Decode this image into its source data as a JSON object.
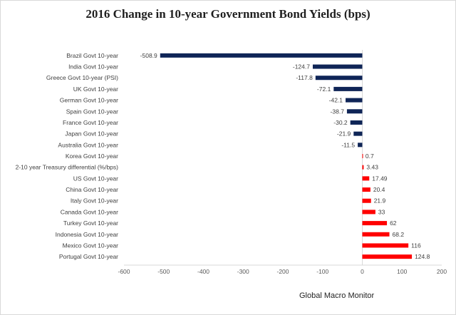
{
  "chart_data": {
    "type": "bar",
    "orientation": "horizontal",
    "title": "2016 Change in 10-year Government Bond Yields (bps)",
    "source": "Global Macro Monitor",
    "categories": [
      "Brazil Govt 10-year",
      "India Govt 10-year",
      "Greece Govt 10-year (PSI)",
      "UK Govt 10-year",
      "German Govt 10-year",
      "Spain Govt 10-year",
      "France Govt 10-year",
      "Japan Govt 10-year",
      "Australia Govt 10-year",
      "Korea Govt 10-year",
      "2-10 year Treasury differential (%/bps)",
      "US Govt 10-year",
      "China Govt 10-year",
      "Italy Govt 10-year",
      "Canada Govt 10-year",
      "Turkey Govt 10-year",
      "Indonesia Govt 10-year",
      "Mexico Govt 10-year",
      "Portugal Govt 10-year"
    ],
    "values": [
      -508.9,
      -124.7,
      -117.8,
      -72.1,
      -42.1,
      -38.7,
      -30.2,
      -21.9,
      -11.5,
      0.7,
      3.43,
      17.49,
      20.4,
      21.9,
      33,
      62,
      68.2,
      116,
      124.8
    ],
    "value_labels": [
      "-508.9",
      "-124.7",
      "-117.8",
      "-72.1",
      "-42.1",
      "-38.7",
      "-30.2",
      "-21.9",
      "-11.5",
      "0.7",
      "3.43",
      "17.49",
      "20.4",
      "21.9",
      "33",
      "62",
      "68.2",
      "116",
      "124.8"
    ],
    "xlim": [
      -600,
      200
    ],
    "xticks": [
      -600,
      -500,
      -400,
      -300,
      -200,
      -100,
      0,
      100,
      200
    ],
    "grid": false,
    "colors": {
      "negative": "#0f2557",
      "positive": "#ff0000",
      "axis": "#d9d9d9"
    }
  }
}
